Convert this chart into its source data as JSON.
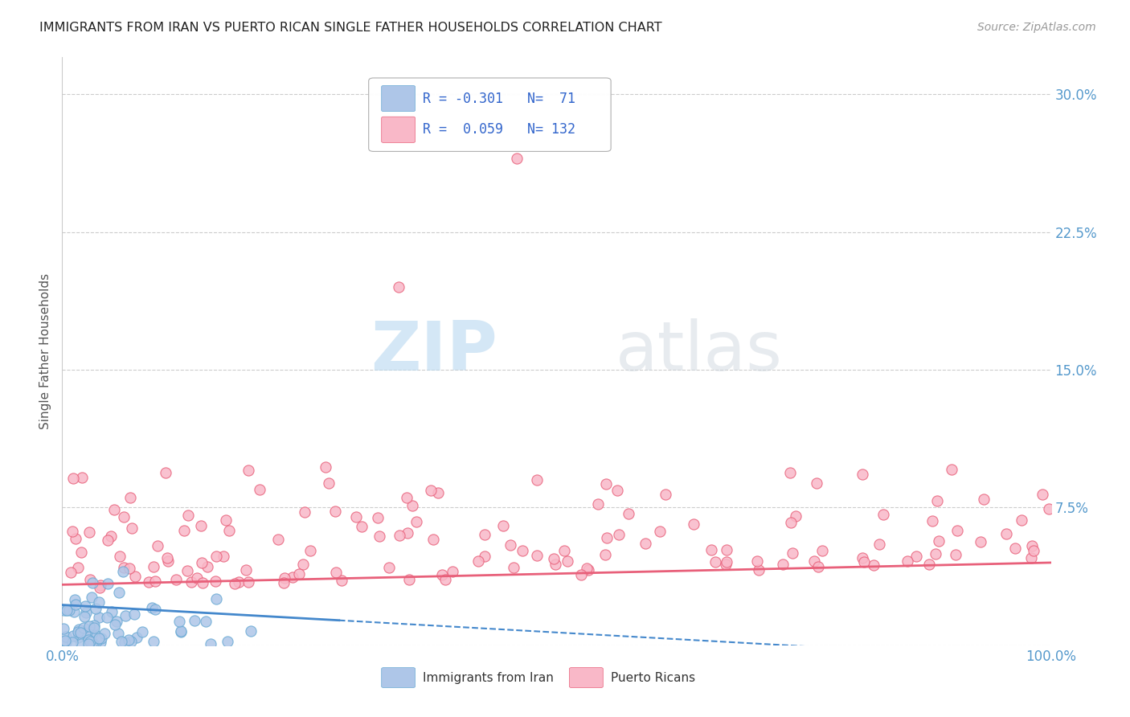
{
  "title": "IMMIGRANTS FROM IRAN VS PUERTO RICAN SINGLE FATHER HOUSEHOLDS CORRELATION CHART",
  "source": "Source: ZipAtlas.com",
  "ylabel": "Single Father Households",
  "xlim": [
    0.0,
    1.0
  ],
  "ylim": [
    0.0,
    0.32
  ],
  "yticks": [
    0.0,
    0.075,
    0.15,
    0.225,
    0.3
  ],
  "ytick_labels": [
    "",
    "7.5%",
    "15.0%",
    "22.5%",
    "30.0%"
  ],
  "xtick_labels": [
    "0.0%",
    "100.0%"
  ],
  "legend_r_iran": "-0.301",
  "legend_n_iran": "71",
  "legend_r_puerto": "0.059",
  "legend_n_puerto": "132",
  "iran_color": "#aec6e8",
  "iran_edge_color": "#6aaad4",
  "puerto_color": "#f9b8c8",
  "puerto_edge_color": "#e8607a",
  "iran_line_color": "#4488cc",
  "puerto_line_color": "#e8607a",
  "watermark_zip": "ZIP",
  "watermark_atlas": "atlas",
  "background_color": "#ffffff",
  "grid_color": "#cccccc",
  "title_color": "#222222",
  "axis_tick_color": "#5599cc",
  "legend_text_color": "#3366cc"
}
